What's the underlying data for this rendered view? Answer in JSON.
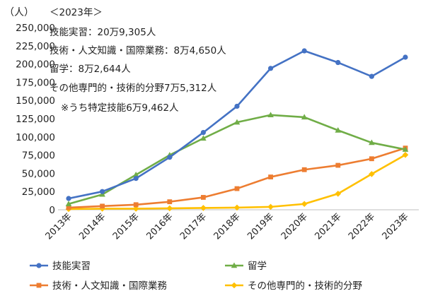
{
  "chart_data": {
    "type": "line",
    "unit_label": "（人）",
    "categories": [
      "2013年",
      "2014年",
      "2015年",
      "2016年",
      "2017年",
      "2018年",
      "2019年",
      "2020年",
      "2021年",
      "2022年",
      "2023年"
    ],
    "ylim": [
      0,
      250000
    ],
    "yticks": [
      0,
      25000,
      50000,
      75000,
      100000,
      125000,
      150000,
      175000,
      200000,
      225000,
      250000
    ],
    "ytick_labels": [
      "0",
      "25,000",
      "50,000",
      "75,000",
      "100,000",
      "125,000",
      "150,000",
      "175,000",
      "200,000",
      "225,000",
      "250,000"
    ],
    "grid": false,
    "legend_position": "bottom",
    "series": [
      {
        "name": "技能実習",
        "color": "#4472C4",
        "marker": "circle",
        "values": [
          15500,
          25000,
          43000,
          72000,
          106000,
          142000,
          194000,
          218000,
          202000,
          183000,
          209305
        ]
      },
      {
        "name": "留学",
        "color": "#70AD47",
        "marker": "triangle",
        "values": [
          8000,
          21000,
          48000,
          75000,
          98000,
          120000,
          130000,
          127000,
          109000,
          92000,
          82644
        ]
      },
      {
        "name": "技術・人文知識・国際業務",
        "color": "#ED7D31",
        "marker": "square",
        "values": [
          3000,
          5000,
          7000,
          11000,
          17000,
          29000,
          45000,
          55000,
          61000,
          70000,
          84650
        ]
      },
      {
        "name": "その他専門的・技術的分野",
        "color": "#FFC000",
        "marker": "diamond",
        "values": [
          1000,
          1500,
          1500,
          2000,
          2500,
          3000,
          4000,
          8000,
          22000,
          49000,
          75312
        ]
      }
    ],
    "annotations": [
      "＜2023年＞",
      "技能実習：20万9,305人",
      "技術・人文知識・国際業務：8万4,650人",
      "留学：8万2,644人",
      "その他専門的・技術的分野7万5,312人",
      "※うち特定技能6万9,462人"
    ]
  }
}
